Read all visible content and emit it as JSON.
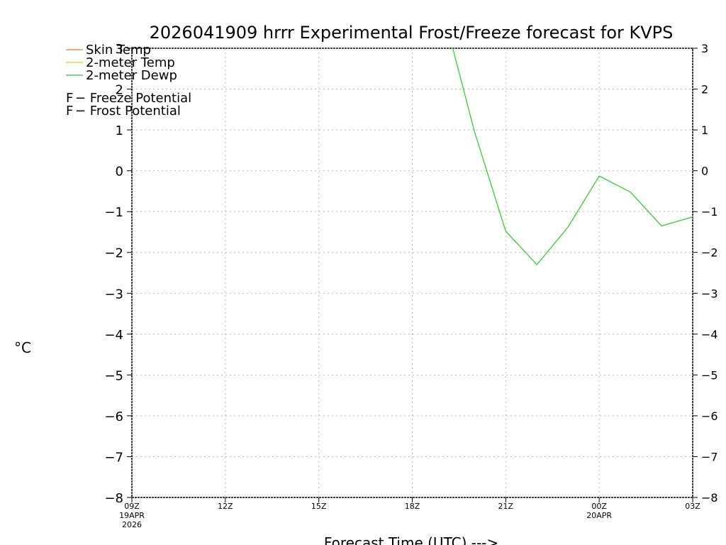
{
  "chart_data": {
    "type": "line",
    "title": "2026041909 hrrr Experimental Frost/Freeze forecast for KVPS",
    "ylabel_unit": "°C",
    "xlabel": "Forecast Time (UTC) --->",
    "ylim": [
      -8,
      3
    ],
    "yticks": [
      3,
      2,
      1,
      0,
      -1,
      -2,
      -3,
      -4,
      -5,
      -6,
      -7,
      -8
    ],
    "ytick_labels": [
      "3",
      "2",
      "1",
      "0",
      "−1",
      "−2",
      "−3",
      "−4",
      "−5",
      "−6",
      "−7",
      "−8"
    ],
    "xlim": [
      0,
      18
    ],
    "xticks": [
      {
        "hour": 0,
        "label": "09Z",
        "sub": [
          "19APR",
          "2026"
        ]
      },
      {
        "hour": 3,
        "label": "12Z",
        "sub": []
      },
      {
        "hour": 6,
        "label": "15Z",
        "sub": []
      },
      {
        "hour": 9,
        "label": "18Z",
        "sub": []
      },
      {
        "hour": 12,
        "label": "21Z",
        "sub": []
      },
      {
        "hour": 15,
        "label": "00Z",
        "sub": [
          "20APR"
        ]
      },
      {
        "hour": 18,
        "label": "03Z",
        "sub": []
      }
    ],
    "series": [
      {
        "name": "Skin Temp",
        "color": "#f07820",
        "x": [],
        "values": []
      },
      {
        "name": "2-meter Temp",
        "color": "#e8c020",
        "x": [],
        "values": []
      },
      {
        "name": "2-meter Dewp",
        "color": "#22cc22",
        "x": [
          10.3,
          11,
          12,
          13,
          14,
          15,
          16,
          17,
          18
        ],
        "values": [
          3.0,
          0.95,
          -1.48,
          -2.3,
          -1.38,
          -0.13,
          -0.52,
          -1.35,
          -1.13
        ]
      }
    ],
    "annotations": [
      {
        "marker": "F",
        "text": " − Freeze Potential",
        "color": "#cc2299"
      },
      {
        "marker": "F",
        "text": " − Frost Potential",
        "color": "#3355ee"
      }
    ],
    "grid": true
  }
}
